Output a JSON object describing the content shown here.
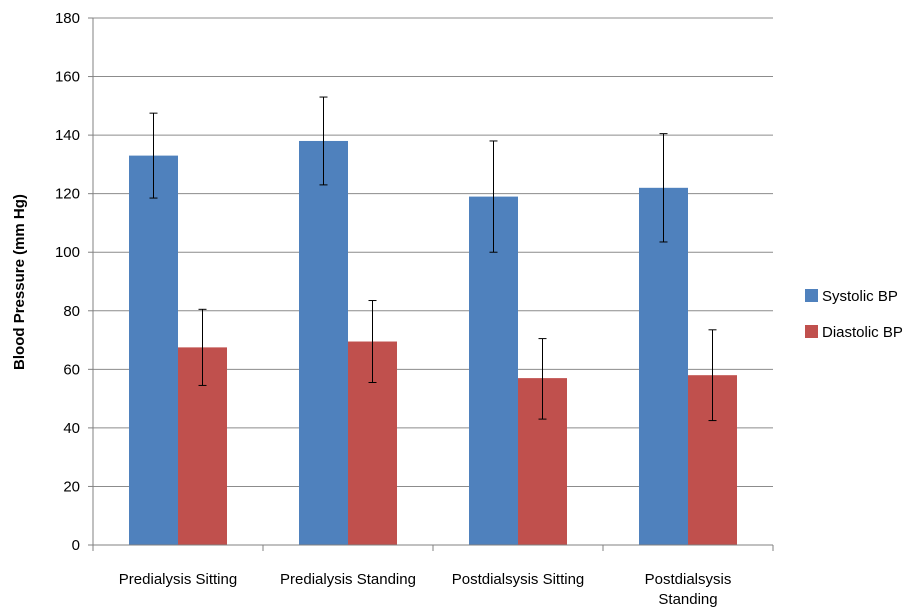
{
  "chart_data": {
    "type": "bar",
    "title": "",
    "xlabel": "",
    "ylabel": "Blood Pressure (mm Hg)",
    "ylim": [
      0,
      180
    ],
    "yticks": [
      0,
      20,
      40,
      60,
      80,
      100,
      120,
      140,
      160,
      180
    ],
    "grid": true,
    "legend_position": "right",
    "categories": [
      [
        "Predialysis Sitting"
      ],
      [
        "Predialysis Standing"
      ],
      [
        "Postdialsysis Sitting"
      ],
      [
        "Postdialsysis",
        "Standing"
      ]
    ],
    "series": [
      {
        "name": "Systolic BP",
        "color": "#4F81BD",
        "values": [
          133,
          138,
          119,
          122
        ],
        "error_low": [
          118.5,
          123,
          100,
          103.5
        ],
        "error_high": [
          147.5,
          153,
          138,
          140.5
        ]
      },
      {
        "name": "Diastolic BP",
        "color": "#C0504D",
        "values": [
          67.5,
          69.5,
          57,
          58
        ],
        "error_low": [
          54.5,
          55.5,
          43,
          42.5
        ],
        "error_high": [
          80.5,
          83.5,
          70.5,
          73.5
        ]
      }
    ]
  }
}
